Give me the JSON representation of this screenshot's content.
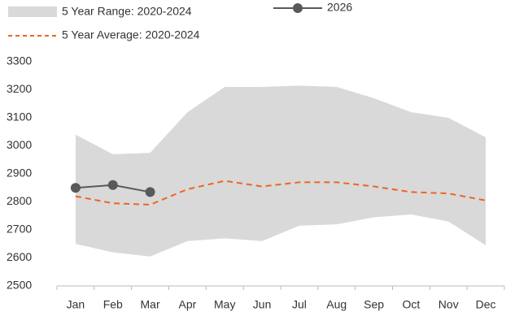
{
  "chart_data": {
    "type": "line",
    "categories": [
      "Jan",
      "Feb",
      "Mar",
      "Apr",
      "May",
      "Jun",
      "Jul",
      "Aug",
      "Sep",
      "Oct",
      "Nov",
      "Dec"
    ],
    "ylim": [
      2500,
      3300
    ],
    "yticks": [
      2500,
      2600,
      2700,
      2800,
      2900,
      3000,
      3100,
      3200,
      3300
    ],
    "grid": false,
    "series": [
      {
        "name": "5 Year Range: 2020-2024",
        "color": "#d9d9d9",
        "high": [
          3040,
          2970,
          2975,
          3120,
          3210,
          3210,
          3215,
          3210,
          3170,
          3120,
          3100,
          3030
        ],
        "low": [
          2650,
          2620,
          2605,
          2660,
          2670,
          2660,
          2715,
          2720,
          2745,
          2755,
          2730,
          2645
        ]
      },
      {
        "name": "5 Year Average: 2020-2024",
        "color": "#f0641e",
        "values": [
          2820,
          2795,
          2790,
          2845,
          2875,
          2855,
          2870,
          2870,
          2855,
          2835,
          2830,
          2805
        ]
      },
      {
        "name": "2026",
        "color": "#595959",
        "values": [
          2850,
          2860,
          2835,
          null,
          null,
          null,
          null,
          null,
          null,
          null,
          null,
          null
        ]
      }
    ]
  }
}
